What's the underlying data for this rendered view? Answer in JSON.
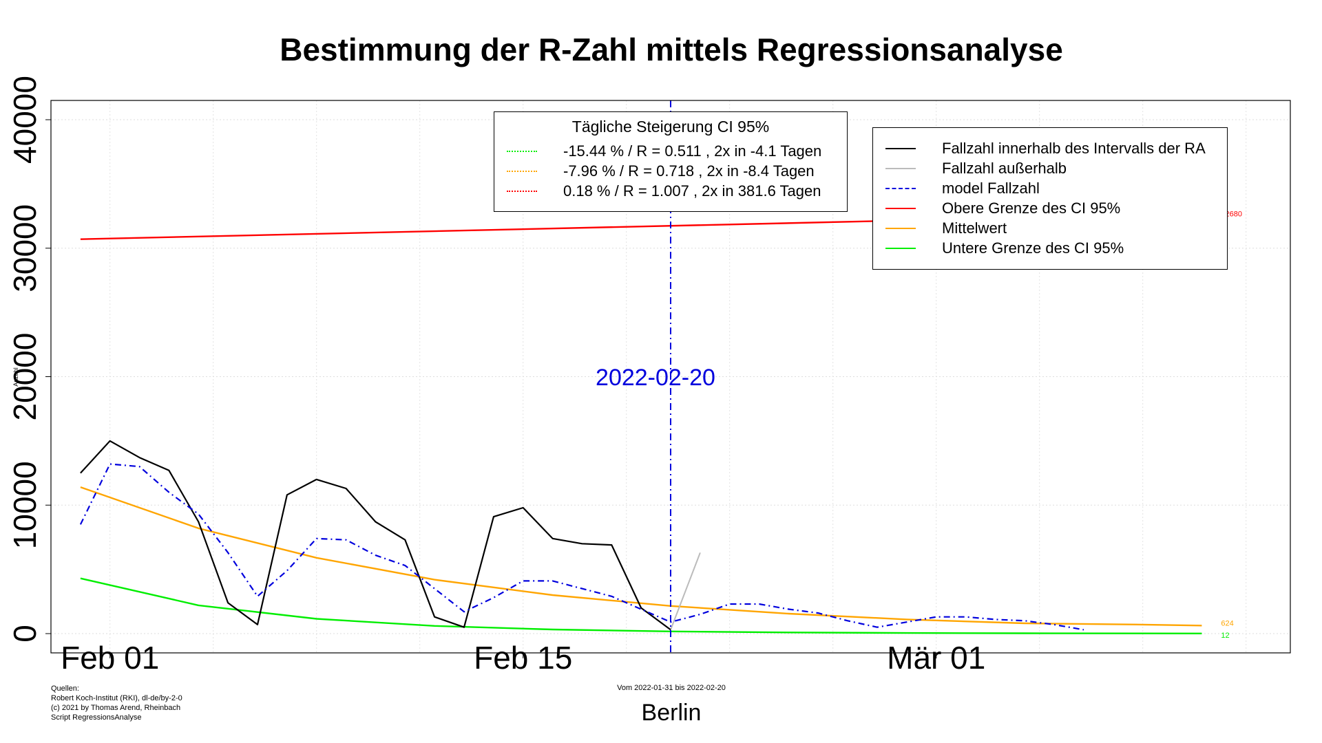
{
  "title": "Bestimmung der R-Zahl mittels Regressionsanalyse",
  "ylabel": "Anzahl",
  "xlabel": "Berlin",
  "date_range_caption": "Vom 2022-01-31 bis 2022-02-20",
  "sources": [
    "Quellen:",
    "Robert Koch-Institut (RKI), dl-de/by-2-0",
    "(c) 2021 by Thomas Arend, Rheinbach",
    "Script RegressionsAnalyse"
  ],
  "colors": {
    "cases": "#000000",
    "cases_outside": "#bbbbbb",
    "model": "#0000dd",
    "upper": "#ff0000",
    "mean": "#ffa500",
    "lower": "#00ee00",
    "marker": "#0000dd"
  },
  "ci_legend": {
    "title": "Tägliche Steigerung CI  95%",
    "items": [
      {
        "label": "-15.44 % / R = 0.511 , 2x in -4.1 Tagen",
        "color": "#00ee00"
      },
      {
        "label": "-7.96 % / R = 0.718 , 2x in -8.4 Tagen",
        "color": "#ffa500"
      },
      {
        "label": "0.18 % / R = 1.007 , 2x in 381.6 Tagen",
        "color": "#ff0000"
      }
    ]
  },
  "series_legend": {
    "items": [
      {
        "label": "Fallzahl innerhalb des Intervalls der RA",
        "color": "#000000",
        "style": "solid"
      },
      {
        "label": "Fallzahl außerhalb",
        "color": "#bbbbbb",
        "style": "solid"
      },
      {
        "label": "model Fallzahl",
        "color": "#0000dd",
        "style": "dashdot"
      },
      {
        "label": "Obere Grenze des CI 95%",
        "color": "#ff0000",
        "style": "solid"
      },
      {
        "label": "Mittelwert",
        "color": "#ffa500",
        "style": "solid"
      },
      {
        "label": "Untere Grenze des CI 95%",
        "color": "#00ee00",
        "style": "solid"
      }
    ]
  },
  "chart_data": {
    "type": "line",
    "title": "Bestimmung der R-Zahl mittels Regressionsanalyse",
    "xlabel": "Berlin",
    "ylabel": "Anzahl",
    "x_axis": "date",
    "xlim": [
      "2022-01-30",
      "2022-03-13"
    ],
    "ylim": [
      -1500,
      41500
    ],
    "x_ticks": [
      {
        "date": "2022-02-01",
        "label": "Feb 01"
      },
      {
        "date": "2022-02-15",
        "label": "Feb 15"
      },
      {
        "date": "2022-03-01",
        "label": "Mär 01"
      }
    ],
    "y_ticks": [
      0,
      10000,
      20000,
      30000,
      40000
    ],
    "y_tick_labels": [
      "0",
      "10000",
      "20000",
      "30000",
      "40000"
    ],
    "grid": true,
    "vertical_marker": {
      "date": "2022-02-20",
      "label": "2022-02-20"
    },
    "series": [
      {
        "name": "Fallzahl innerhalb des Intervalls der RA",
        "x": [
          "2022-01-31",
          "2022-02-01",
          "2022-02-02",
          "2022-02-03",
          "2022-02-04",
          "2022-02-05",
          "2022-02-06",
          "2022-02-07",
          "2022-02-08",
          "2022-02-09",
          "2022-02-10",
          "2022-02-11",
          "2022-02-12",
          "2022-02-13",
          "2022-02-14",
          "2022-02-15",
          "2022-02-16",
          "2022-02-17",
          "2022-02-18",
          "2022-02-19",
          "2022-02-20"
        ],
        "values": [
          12500,
          15000,
          13700,
          12700,
          8700,
          2400,
          700,
          10800,
          12000,
          11300,
          8700,
          7300,
          1300,
          500,
          9100,
          9800,
          7400,
          7000,
          6900,
          2000,
          300
        ]
      },
      {
        "name": "Fallzahl außerhalb",
        "x": [
          "2022-02-20",
          "2022-02-21"
        ],
        "values": [
          300,
          6300
        ]
      },
      {
        "name": "model Fallzahl",
        "x": [
          "2022-01-31",
          "2022-02-01",
          "2022-02-02",
          "2022-02-03",
          "2022-02-04",
          "2022-02-05",
          "2022-02-06",
          "2022-02-07",
          "2022-02-08",
          "2022-02-09",
          "2022-02-10",
          "2022-02-11",
          "2022-02-12",
          "2022-02-13",
          "2022-02-14",
          "2022-02-15",
          "2022-02-16",
          "2022-02-17",
          "2022-02-18",
          "2022-02-19",
          "2022-02-20",
          "2022-02-21",
          "2022-02-22",
          "2022-02-23",
          "2022-02-24",
          "2022-02-25",
          "2022-02-26",
          "2022-02-27",
          "2022-02-28",
          "2022-03-01",
          "2022-03-02",
          "2022-03-03",
          "2022-03-04",
          "2022-03-05",
          "2022-03-06"
        ],
        "values": [
          8500,
          13200,
          13000,
          11000,
          9300,
          6300,
          2900,
          4900,
          7400,
          7300,
          6100,
          5300,
          3500,
          1700,
          2800,
          4100,
          4100,
          3500,
          2900,
          1900,
          900,
          1500,
          2300,
          2300,
          1900,
          1600,
          1000,
          500,
          900,
          1300,
          1300,
          1100,
          1000,
          700,
          300
        ]
      },
      {
        "name": "Obere Grenze des CI 95%",
        "x": [
          "2022-01-31",
          "2022-03-10"
        ],
        "values": [
          30700,
          32680
        ]
      },
      {
        "name": "Mittelwert",
        "x": [
          "2022-01-31",
          "2022-02-04",
          "2022-02-08",
          "2022-02-12",
          "2022-02-16",
          "2022-02-20",
          "2022-02-24",
          "2022-02-28",
          "2022-03-04",
          "2022-03-08",
          "2022-03-10"
        ],
        "values": [
          11400,
          8200,
          5900,
          4200,
          3000,
          2150,
          1550,
          1100,
          800,
          700,
          624
        ]
      },
      {
        "name": "Untere Grenze des CI 95%",
        "x": [
          "2022-01-31",
          "2022-02-04",
          "2022-02-08",
          "2022-02-12",
          "2022-02-16",
          "2022-02-20",
          "2022-02-24",
          "2022-02-28",
          "2022-03-04",
          "2022-03-10"
        ],
        "values": [
          4300,
          2200,
          1150,
          600,
          320,
          170,
          90,
          50,
          25,
          12
        ]
      }
    ],
    "end_labels": [
      {
        "series": "Obere Grenze des CI 95%",
        "value": "32680"
      },
      {
        "series": "Mittelwert",
        "value": "624"
      },
      {
        "series": "Untere Grenze des CI 95%",
        "value": "12"
      }
    ]
  }
}
